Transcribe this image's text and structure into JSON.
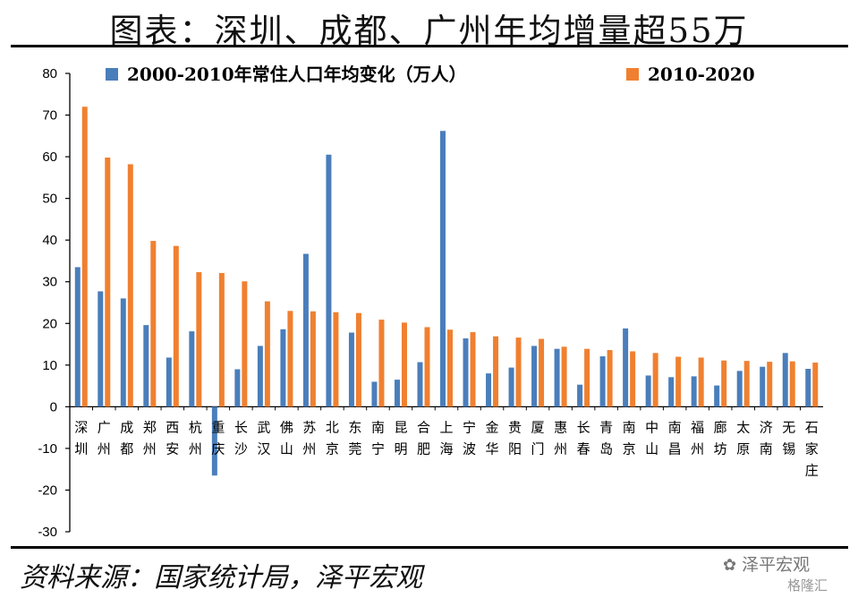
{
  "title": "图表：深圳、成都、广州年均增量超55万",
  "source": "资料来源：国家统计局，泽平宏观",
  "watermark": "泽平宏观",
  "watermark_sub": "格隆汇",
  "chart_data": {
    "type": "bar",
    "ylim": [
      -30,
      80
    ],
    "yticks": [
      80,
      70,
      60,
      50,
      40,
      30,
      20,
      10,
      0,
      -10,
      -20,
      -30
    ],
    "legend_position": "top",
    "categories": [
      "深圳",
      "广州",
      "成都",
      "郑州",
      "西安",
      "杭州",
      "重庆",
      "长沙",
      "武汉",
      "佛山",
      "苏州",
      "北京",
      "东莞",
      "南宁",
      "昆明",
      "合肥",
      "上海",
      "宁波",
      "金华",
      "贵阳",
      "厦门",
      "惠州",
      "长春",
      "青岛",
      "南京",
      "中山",
      "南昌",
      "福州",
      "廊坊",
      "太原",
      "济南",
      "无锡",
      "石家庄"
    ],
    "series": [
      {
        "name": "2000-2010年常住人口年均变化（万人）",
        "color": "#4a7ebb",
        "values": [
          33.5,
          27.7,
          26.0,
          19.6,
          11.8,
          18.1,
          -16.5,
          9.0,
          14.6,
          18.6,
          36.7,
          60.5,
          17.8,
          6.0,
          6.5,
          10.7,
          66.2,
          16.4,
          8.0,
          9.4,
          14.6,
          13.9,
          5.3,
          12.1,
          18.8,
          7.5,
          7.1,
          7.3,
          5.1,
          8.6,
          9.6,
          12.9,
          9.1
        ]
      },
      {
        "name": "2010-2020",
        "color": "#f08030",
        "values": [
          72.0,
          59.8,
          58.2,
          39.8,
          38.6,
          32.3,
          32.1,
          30.1,
          25.3,
          23.0,
          22.9,
          22.7,
          22.5,
          20.9,
          20.2,
          19.1,
          18.5,
          17.9,
          16.9,
          16.6,
          16.3,
          14.4,
          13.9,
          13.6,
          13.3,
          12.9,
          12.0,
          11.8,
          11.1,
          11.0,
          10.8,
          10.9,
          10.6
        ]
      }
    ]
  }
}
